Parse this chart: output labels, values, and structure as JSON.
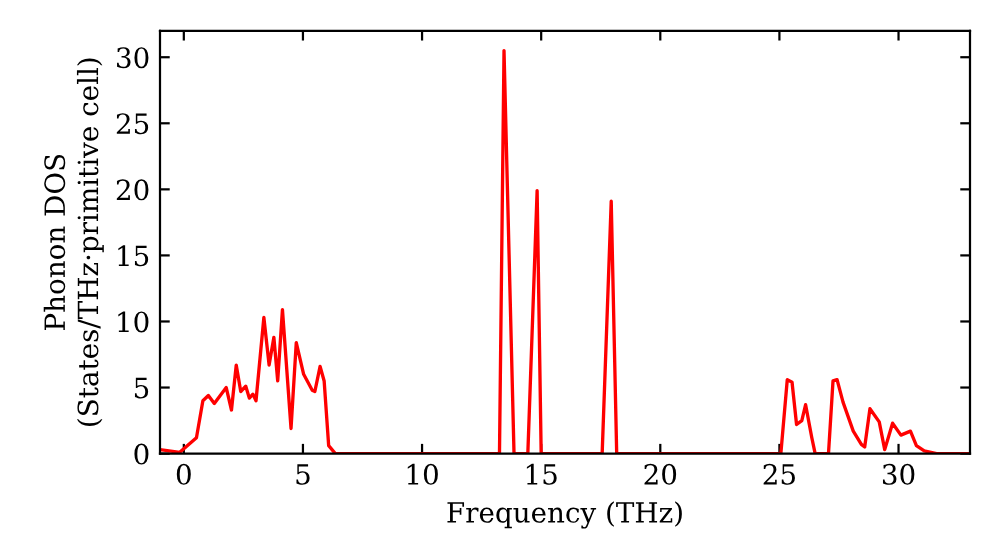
{
  "chart_data": {
    "type": "line",
    "xlabel": "Frequency (THz)",
    "ylabel": "Phonon DOS\n(States/THz·primitive cell)",
    "xlim": [
      -1,
      33
    ],
    "ylim": [
      0,
      32
    ],
    "xticks": [
      0,
      5,
      10,
      15,
      20,
      25,
      30
    ],
    "yticks": [
      0,
      5,
      10,
      15,
      20,
      25,
      30
    ],
    "grid": false,
    "legend": false,
    "marker": "none",
    "line_style": "solid",
    "series": [
      {
        "color": "#ff0000",
        "x": [
          -1,
          -0.17,
          0.53,
          0.8,
          1.03,
          1.28,
          1.78,
          2.0,
          2.2,
          2.39,
          2.6,
          2.75,
          2.9,
          3.03,
          3.36,
          3.58,
          3.78,
          3.94,
          4.14,
          4.5,
          4.72,
          5.03,
          5.39,
          5.5,
          5.72,
          5.89,
          6.08,
          6.36,
          13.25,
          13.44,
          13.86,
          14.44,
          14.83,
          15.0,
          17.56,
          17.94,
          18.17,
          25.06,
          25.33,
          25.53,
          25.72,
          25.94,
          26.1,
          26.36,
          26.5,
          27.06,
          27.25,
          27.42,
          27.67,
          28.1,
          28.44,
          28.58,
          28.8,
          29.19,
          29.42,
          29.75,
          30.1,
          30.5,
          30.75,
          31.08,
          31.6,
          33
        ],
        "values": [
          0.3,
          0.1,
          1.2,
          4.0,
          4.4,
          3.8,
          5.0,
          3.3,
          6.7,
          4.7,
          5.1,
          4.2,
          4.5,
          4.0,
          10.3,
          6.7,
          8.8,
          5.5,
          10.9,
          1.9,
          8.4,
          6.0,
          4.8,
          4.7,
          6.6,
          5.5,
          0.6,
          0,
          0,
          30.5,
          0,
          0,
          19.9,
          0,
          0,
          19.1,
          0,
          0,
          5.6,
          5.4,
          2.2,
          2.5,
          3.7,
          1.2,
          0,
          0,
          5.5,
          5.6,
          3.9,
          1.7,
          0.7,
          0.5,
          3.4,
          2.4,
          0.3,
          2.3,
          1.4,
          1.7,
          0.6,
          0.2,
          0,
          0
        ]
      }
    ]
  }
}
